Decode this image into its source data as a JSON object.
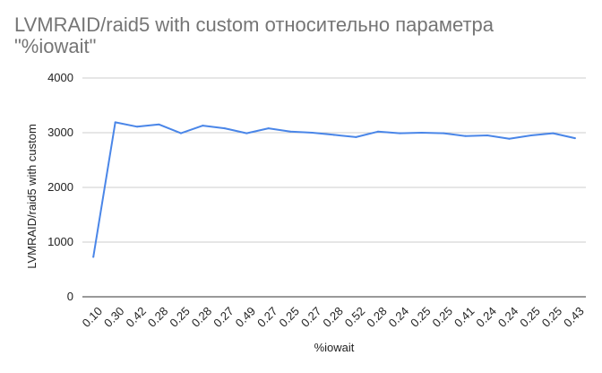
{
  "chart_data": {
    "type": "line",
    "title": "LVMRAID/raid5 with custom относительно параметра\n\"%iowait\"",
    "xlabel": "%iowait",
    "ylabel": "LVMRAID/raid5 with custom",
    "ylim": [
      0,
      4000
    ],
    "yticks": [
      "0",
      "1000",
      "2000",
      "3000",
      "4000"
    ],
    "grid": true,
    "legend": "none",
    "line_color": "#4a86e8",
    "categories": [
      "0.10",
      "0.30",
      "0.42",
      "0.28",
      "0.25",
      "0.28",
      "0.27",
      "0.49",
      "0.27",
      "0.25",
      "0.27",
      "0.28",
      "0.52",
      "0.28",
      "0.24",
      "0.25",
      "0.25",
      "0.41",
      "0.24",
      "0.24",
      "0.25",
      "0.25",
      "0.43"
    ],
    "series": [
      {
        "values": [
          730,
          3190,
          3110,
          3150,
          2990,
          3130,
          3080,
          2990,
          3080,
          3020,
          3000,
          2960,
          2920,
          3020,
          2990,
          3000,
          2990,
          2940,
          2950,
          2890,
          2950,
          2990,
          2900
        ]
      }
    ]
  }
}
